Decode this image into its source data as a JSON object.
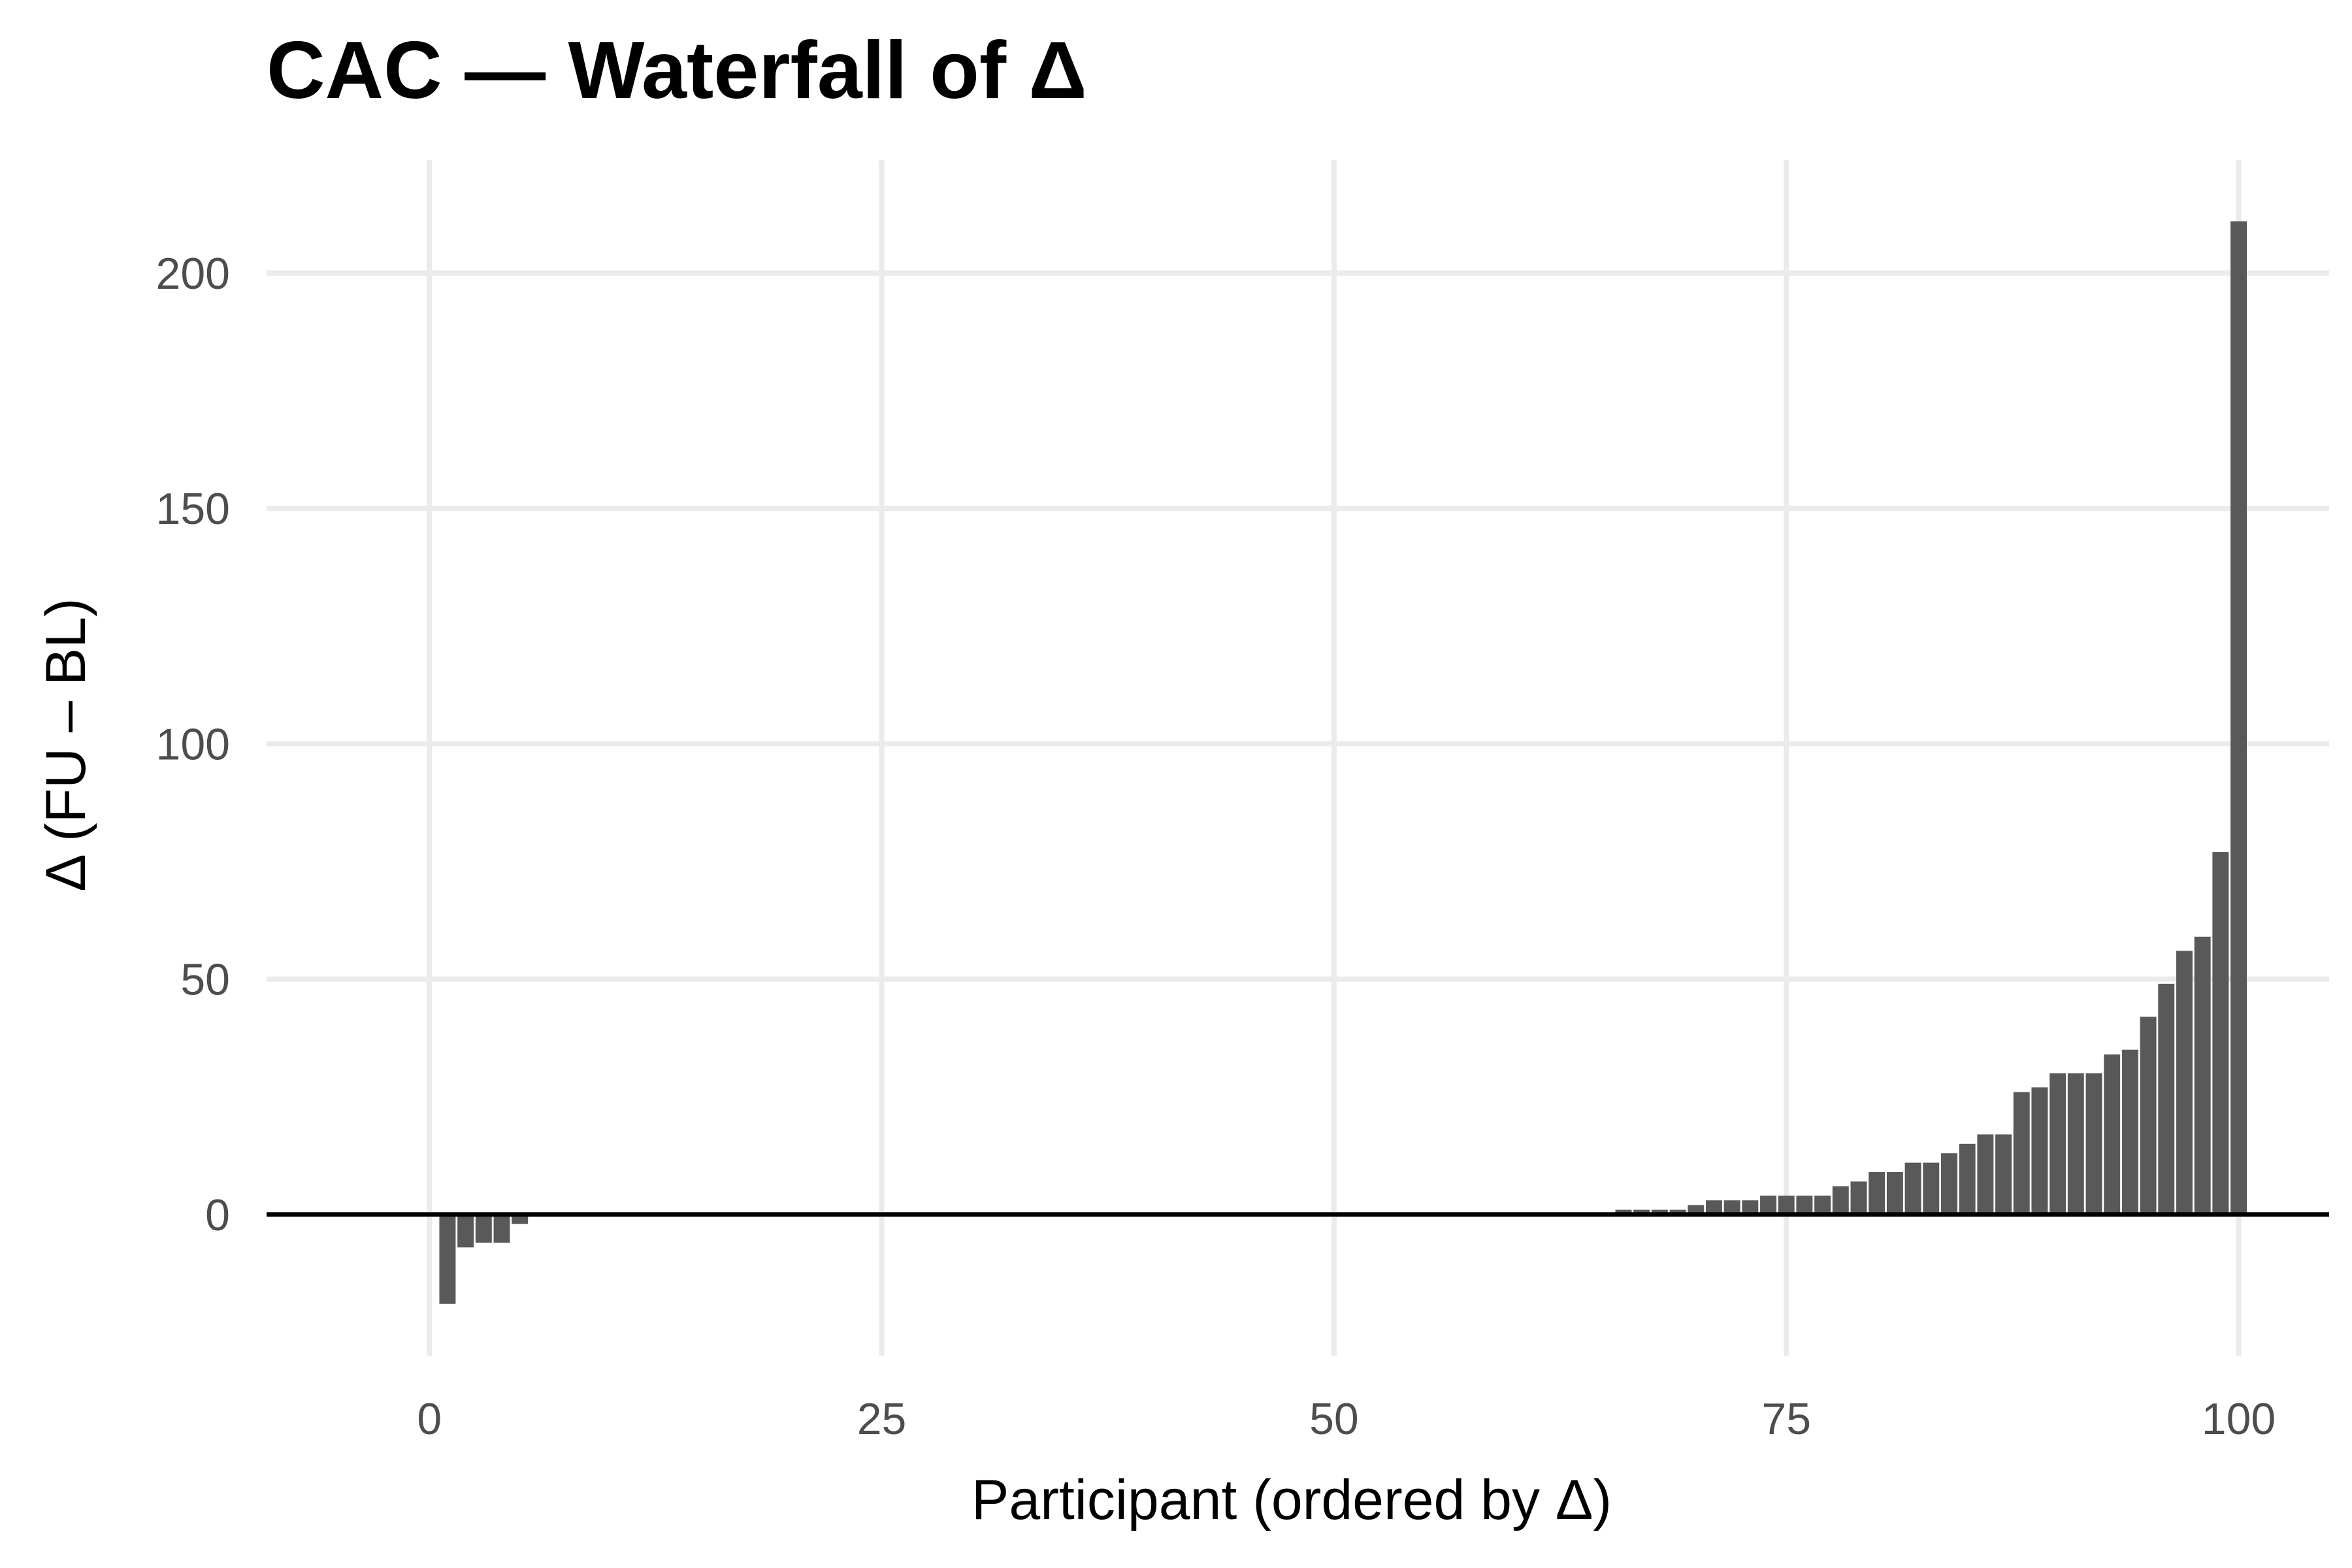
{
  "chart_data": {
    "type": "bar",
    "title": "CAC — Waterfall of Δ",
    "xlabel": "Participant (ordered by Δ)",
    "ylabel": "Δ (FU – BL)",
    "xlim": [
      -9,
      105
    ],
    "ylim": [
      -30,
      224
    ],
    "xticks": [
      0,
      25,
      50,
      75,
      100
    ],
    "yticks": [
      0,
      50,
      100,
      150,
      200
    ],
    "grid": true,
    "legend": "none",
    "bar_color": "#595959",
    "zero_line": 0,
    "x": [
      1,
      2,
      3,
      4,
      5,
      6,
      7,
      8,
      9,
      10,
      11,
      12,
      13,
      14,
      15,
      16,
      17,
      18,
      19,
      20,
      21,
      22,
      23,
      24,
      25,
      26,
      27,
      28,
      29,
      30,
      31,
      32,
      33,
      34,
      35,
      36,
      37,
      38,
      39,
      40,
      41,
      42,
      43,
      44,
      45,
      46,
      47,
      48,
      49,
      50,
      51,
      52,
      53,
      54,
      55,
      56,
      57,
      58,
      59,
      60,
      61,
      62,
      63,
      64,
      65,
      66,
      67,
      68,
      69,
      70,
      71,
      72,
      73,
      74,
      75,
      76,
      77,
      78,
      79,
      80,
      81,
      82,
      83,
      84,
      85,
      86,
      87,
      88,
      89,
      90,
      91,
      92,
      93,
      94,
      95,
      96,
      97,
      98,
      99,
      100
    ],
    "values": [
      -19,
      -7,
      -6,
      -6,
      -2,
      0,
      0,
      0,
      0,
      0,
      0,
      0,
      0,
      0,
      0,
      0,
      0,
      0,
      0,
      0,
      0,
      0,
      0,
      0,
      0,
      0,
      0,
      0,
      0,
      0,
      0,
      0,
      0,
      0,
      0,
      0,
      0,
      0,
      0,
      0,
      0,
      0,
      0,
      0,
      0,
      0,
      0,
      0,
      0,
      0,
      0,
      0,
      0,
      0,
      0,
      0,
      0,
      0,
      0,
      0,
      0,
      0,
      0,
      0,
      0,
      1,
      1,
      1,
      1,
      2,
      3,
      3,
      3,
      4,
      4,
      4,
      4,
      6,
      7,
      9,
      9,
      11,
      11,
      13,
      15,
      17,
      17,
      26,
      27,
      30,
      30,
      30,
      34,
      35,
      42,
      49,
      56,
      59,
      77,
      211
    ]
  }
}
